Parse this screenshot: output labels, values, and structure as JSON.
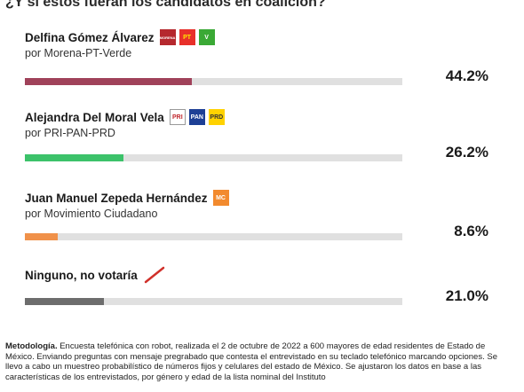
{
  "title": "¿Y si estos fueran los candidatos en coalición?",
  "chart_data": {
    "type": "bar",
    "categories": [
      "Delfina Gómez Álvarez",
      "Alejandra Del Moral Vela",
      "Juan Manuel Zepeda Hernández",
      "Ninguno, no votaría"
    ],
    "values": [
      44.2,
      26.2,
      8.6,
      21.0
    ],
    "ylim": [
      0,
      100
    ]
  },
  "candidates": [
    {
      "name": "Delfina Gómez Álvarez",
      "party": "por Morena-PT-Verde",
      "value": 44.2,
      "value_label": "44.2%",
      "color": "#a0425a",
      "logos": [
        {
          "icon": "morena-logo-icon",
          "text": "MORENA",
          "bg": "#b5282e",
          "fg": "#ffffff"
        },
        {
          "icon": "pt-logo-icon",
          "text": "PT",
          "bg": "#e8302a",
          "fg": "#ffe600"
        },
        {
          "icon": "verde-logo-icon",
          "text": "V",
          "bg": "#3aa935",
          "fg": "#ffffff"
        }
      ]
    },
    {
      "name": "Alejandra Del Moral Vela",
      "party": "por PRI-PAN-PRD",
      "value": 26.2,
      "value_label": "26.2%",
      "color": "#3cc26a",
      "logos": [
        {
          "icon": "pri-logo-icon",
          "text": "PRI",
          "bg": "#ffffff",
          "fg": "#c0282d"
        },
        {
          "icon": "pan-logo-icon",
          "text": "PAN",
          "bg": "#1d3f95",
          "fg": "#ffffff"
        },
        {
          "icon": "prd-logo-icon",
          "text": "PRD",
          "bg": "#ffd200",
          "fg": "#333333"
        }
      ]
    },
    {
      "name": "Juan Manuel Zepeda Hernández",
      "party": "por Movimiento Ciudadano",
      "value": 8.6,
      "value_label": "8.6%",
      "color": "#f0914a",
      "logos": [
        {
          "icon": "mc-logo-icon",
          "text": "MC",
          "bg": "#f28a2e",
          "fg": "#ffffff"
        }
      ]
    },
    {
      "name": "Ninguno, no votaría",
      "party": "",
      "value": 21.0,
      "value_label": "21.0%",
      "color": "#6d6d6d",
      "logos": [
        {
          "icon": "crossed-ballot-icon",
          "text": "",
          "bg": "transparent",
          "fg": "#d0302a"
        }
      ]
    }
  ],
  "methodology": {
    "label": "Metodología.",
    "text": " Encuesta telefónica con robot, realizada el 2 de octubre de 2022 a 600 mayores de edad residentes de Estado de México. Enviando preguntas con mensaje pregrabado que contesta el entrevistado en su teclado telefónico marcando opciones. Se llevo a cabo un muestreo probabilístico de números fijos y celulares del estado de México. Se ajustaron los datos en base a las características de los entrevistados, por género y edad de la lista nominal del Instituto"
  }
}
